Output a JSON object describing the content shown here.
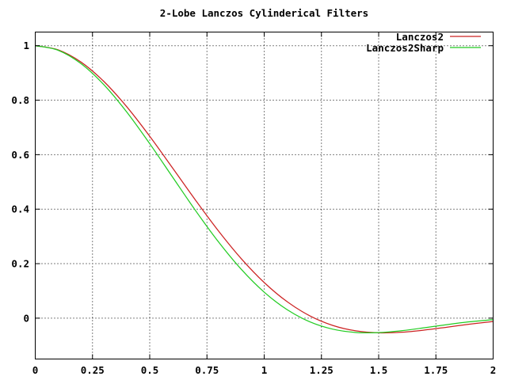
{
  "chart_data": {
    "type": "line",
    "title": "2-Lobe Lanczos Cylinderical Filters",
    "x": [
      0,
      0.1,
      0.2,
      0.3,
      0.4,
      0.5,
      0.6,
      0.7,
      0.8,
      0.9,
      1.0,
      1.1,
      1.2,
      1.3,
      1.4,
      1.5,
      1.6,
      1.7,
      1.8,
      1.9,
      2.0
    ],
    "series": [
      {
        "name": "Lanczos2",
        "color": "#cc2222",
        "values": [
          1.0,
          0.9847,
          0.9398,
          0.8684,
          0.7756,
          0.6675,
          0.5509,
          0.4331,
          0.3204,
          0.2182,
          0.1308,
          0.0605,
          0.0082,
          -0.0268,
          -0.0465,
          -0.0537,
          -0.0517,
          -0.0437,
          -0.033,
          -0.0219,
          -0.0123
        ]
      },
      {
        "name": "Lanczos2Sharp",
        "color": "#22cc22",
        "values": [
          1.0,
          0.9832,
          0.9341,
          0.8565,
          0.7562,
          0.6405,
          0.5175,
          0.395,
          0.2803,
          0.1791,
          0.0954,
          0.0312,
          -0.0136,
          -0.0405,
          -0.0525,
          -0.053,
          -0.0461,
          -0.0352,
          -0.0235,
          -0.0132,
          -0.0055
        ]
      }
    ],
    "xlim": [
      0,
      2
    ],
    "ylim": [
      -0.15,
      1.05
    ],
    "xticks": [
      {
        "value": 0,
        "label": "0"
      },
      {
        "value": 0.25,
        "label": "0.25"
      },
      {
        "value": 0.5,
        "label": "0.5"
      },
      {
        "value": 0.75,
        "label": "0.75"
      },
      {
        "value": 1,
        "label": "1"
      },
      {
        "value": 1.25,
        "label": "1.25"
      },
      {
        "value": 1.5,
        "label": "1.5"
      },
      {
        "value": 1.75,
        "label": "1.75"
      },
      {
        "value": 2,
        "label": "2"
      }
    ],
    "yticks": [
      {
        "value": 0,
        "label": "0"
      },
      {
        "value": 0.2,
        "label": "0.2"
      },
      {
        "value": 0.4,
        "label": "0.4"
      },
      {
        "value": 0.6,
        "label": "0.6"
      },
      {
        "value": 0.8,
        "label": "0.8"
      },
      {
        "value": 1,
        "label": "1"
      }
    ],
    "grid": true,
    "legend_position": "top-right",
    "background": "#ffffff",
    "axis_color": "#000000",
    "grid_color": "#000000"
  }
}
